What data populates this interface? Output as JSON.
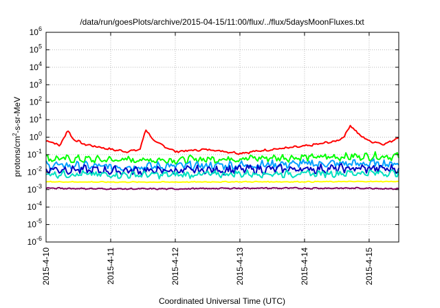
{
  "chart_data": {
    "type": "line",
    "title": "/data/run/goesPlots/archive/2015-04-15/11:00/flux/../flux/5daysMoonFluxes.txt",
    "xlabel": "Coordinated Universal Time (UTC)",
    "ylabel": "protons/cm²-s-sr-MeV",
    "ylabel_parts": {
      "before": "protons/cm",
      "sup": "2",
      "after": "-s-sr-MeV"
    },
    "yscale": "log",
    "ylim": [
      1e-06,
      1000000.0
    ],
    "y_ticks": [
      {
        "base": "10",
        "exp": "-6"
      },
      {
        "base": "10",
        "exp": "-5"
      },
      {
        "base": "10",
        "exp": "-4"
      },
      {
        "base": "10",
        "exp": "-3"
      },
      {
        "base": "10",
        "exp": "-2"
      },
      {
        "base": "10",
        "exp": "-1"
      },
      {
        "base": "10",
        "exp": "0"
      },
      {
        "base": "10",
        "exp": "1"
      },
      {
        "base": "10",
        "exp": "2"
      },
      {
        "base": "10",
        "exp": "3"
      },
      {
        "base": "10",
        "exp": "4"
      },
      {
        "base": "10",
        "exp": "5"
      },
      {
        "base": "10",
        "exp": "6"
      }
    ],
    "xlim": [
      "2015-04-10T00:00",
      "2015-04-15T11:00"
    ],
    "x_ticks": [
      "2015-4-10",
      "2015-4-11",
      "2015-4-12",
      "2015-4-13",
      "2015-4-14",
      "2015-4-15"
    ],
    "grid": true,
    "series": [
      {
        "color": "#ff0000",
        "x": [
          "2015-04-10T00:00",
          "2015-04-10T03:00",
          "2015-04-10T05:00",
          "2015-04-10T08:00",
          "2015-04-10T10:00",
          "2015-04-10T14:00",
          "2015-04-11T00:00",
          "2015-04-11T06:00",
          "2015-04-11T11:00",
          "2015-04-11T13:00",
          "2015-04-11T16:00",
          "2015-04-12T00:00",
          "2015-04-12T12:00",
          "2015-04-13T00:00",
          "2015-04-13T12:00",
          "2015-04-14T00:00",
          "2015-04-14T12:00",
          "2015-04-14T15:00",
          "2015-04-14T17:00",
          "2015-04-14T20:00",
          "2015-04-15T00:00",
          "2015-04-15T06:00",
          "2015-04-15T11:00"
        ],
        "values": [
          0.6,
          0.5,
          0.3,
          2.5,
          0.8,
          0.4,
          0.2,
          0.15,
          0.2,
          3,
          0.6,
          0.15,
          0.2,
          0.12,
          0.2,
          0.3,
          0.6,
          1.2,
          5,
          1.5,
          0.6,
          0.4,
          1.0
        ]
      },
      {
        "color": "#00ff00",
        "x": [
          "2015-04-10T00:00",
          "2015-04-11T00:00",
          "2015-04-12T00:00",
          "2015-04-13T00:00",
          "2015-04-14T00:00",
          "2015-04-15T00:00",
          "2015-04-15T11:00"
        ],
        "values": [
          0.06,
          0.05,
          0.05,
          0.06,
          0.07,
          0.08,
          0.08
        ]
      },
      {
        "color": "#00a0ff",
        "x": [
          "2015-04-10T00:00",
          "2015-04-11T00:00",
          "2015-04-12T00:00",
          "2015-04-13T00:00",
          "2015-04-14T00:00",
          "2015-04-15T00:00",
          "2015-04-15T11:00"
        ],
        "values": [
          0.025,
          0.02,
          0.022,
          0.025,
          0.03,
          0.03,
          0.03
        ]
      },
      {
        "color": "#0000c0",
        "x": [
          "2015-04-10T00:00",
          "2015-04-11T00:00",
          "2015-04-12T00:00",
          "2015-04-13T00:00",
          "2015-04-14T00:00",
          "2015-04-15T00:00",
          "2015-04-15T11:00"
        ],
        "values": [
          0.015,
          0.012,
          0.012,
          0.014,
          0.015,
          0.016,
          0.015
        ]
      },
      {
        "color": "#00e0c0",
        "x": [
          "2015-04-10T00:00",
          "2015-04-11T00:00",
          "2015-04-12T00:00",
          "2015-04-13T00:00",
          "2015-04-14T00:00",
          "2015-04-15T00:00",
          "2015-04-15T11:00"
        ],
        "values": [
          0.008,
          0.007,
          0.007,
          0.008,
          0.008,
          0.009,
          0.009
        ]
      },
      {
        "color": "#ffff00",
        "x": [
          "2015-04-10T00:00",
          "2015-04-11T00:00",
          "2015-04-12T00:00",
          "2015-04-13T00:00",
          "2015-04-14T00:00",
          "2015-04-15T00:00",
          "2015-04-15T11:00"
        ],
        "values": [
          0.0028,
          0.0027,
          0.0027,
          0.0028,
          0.0028,
          0.0029,
          0.0029
        ]
      },
      {
        "color": "#800060",
        "x": [
          "2015-04-10T00:00",
          "2015-04-11T00:00",
          "2015-04-12T00:00",
          "2015-04-13T00:00",
          "2015-04-14T00:00",
          "2015-04-15T00:00",
          "2015-04-15T11:00"
        ],
        "values": [
          0.0012,
          0.0011,
          0.0011,
          0.0012,
          0.0012,
          0.0012,
          0.0011
        ]
      }
    ]
  }
}
